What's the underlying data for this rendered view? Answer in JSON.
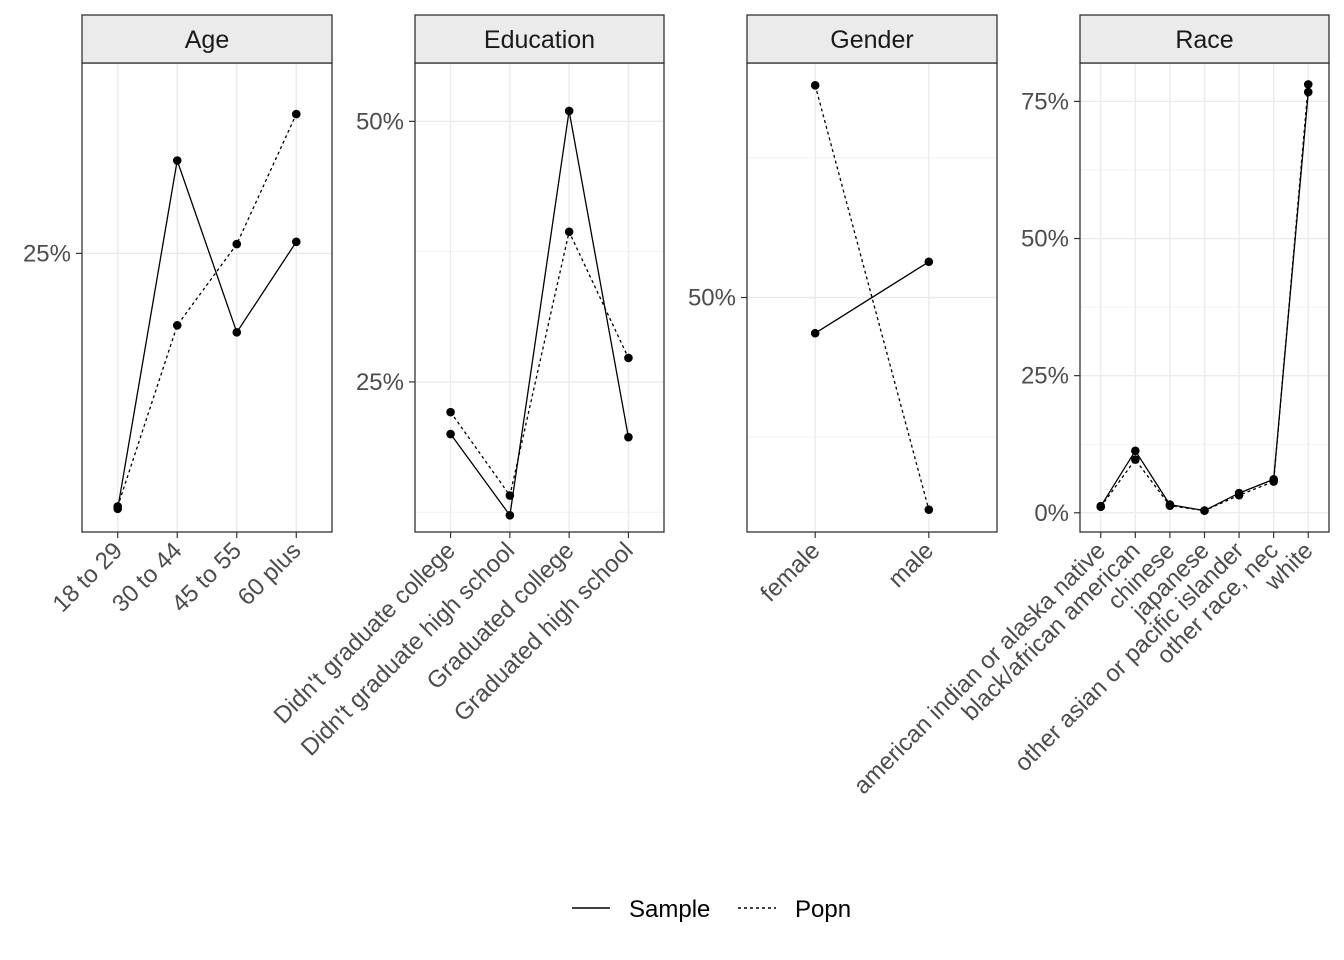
{
  "chart_data": {
    "type": "line",
    "layout": "faceted, free y scales",
    "grid": true,
    "legend_position": "bottom",
    "legend": [
      {
        "name": "Sample",
        "linetype": "solid"
      },
      {
        "name": "Popn",
        "linetype": "dashed"
      }
    ],
    "facets": [
      {
        "title": "Age",
        "categories": [
          "18 to 29",
          "30 to 44",
          "45 to 55",
          "60 plus"
        ],
        "ylim": [
          0.13,
          0.332
        ],
        "yticks": [
          0.25
        ],
        "ytick_labels": [
          "25%"
        ],
        "series": [
          {
            "name": "Sample",
            "values": [
              0.14,
              0.29,
              0.216,
              0.255
            ]
          },
          {
            "name": "Popn",
            "values": [
              0.141,
              0.219,
              0.254,
              0.31
            ]
          }
        ]
      },
      {
        "title": "Education",
        "categories": [
          "Didn't graduate college",
          "Didn't graduate high school",
          "Graduated college",
          "Graduated high school"
        ],
        "ylim": [
          0.106,
          0.556
        ],
        "yticks": [
          0.25,
          0.5
        ],
        "ytick_labels": [
          "25%",
          "50%"
        ],
        "series": [
          {
            "name": "Sample",
            "values": [
              0.2,
              0.122,
              0.51,
              0.197
            ]
          },
          {
            "name": "Popn",
            "values": [
              0.221,
              0.141,
              0.394,
              0.273
            ]
          }
        ]
      },
      {
        "title": "Gender",
        "categories": [
          "female",
          "male"
        ],
        "ylim": [
          0.29,
          0.71
        ],
        "yticks": [
          0.5
        ],
        "ytick_labels": [
          "50%"
        ],
        "series": [
          {
            "name": "Sample",
            "values": [
              0.468,
              0.532
            ]
          },
          {
            "name": "Popn",
            "values": [
              0.69,
              0.31
            ]
          }
        ]
      },
      {
        "title": "Race",
        "categories": [
          "american indian or alaska native",
          "black/african american",
          "chinese",
          "japanese",
          "other asian or pacific islander",
          "other race, nec",
          "white"
        ],
        "ylim": [
          -0.035,
          0.82
        ],
        "yticks": [
          0,
          0.25,
          0.5,
          0.75
        ],
        "ytick_labels": [
          "0%",
          "25%",
          "50%",
          "75%"
        ],
        "series": [
          {
            "name": "Sample",
            "values": [
              0.012,
              0.113,
              0.015,
              0.004,
              0.036,
              0.061,
              0.767
            ]
          },
          {
            "name": "Popn",
            "values": [
              0.011,
              0.097,
              0.013,
              0.004,
              0.032,
              0.057,
              0.781
            ]
          }
        ]
      }
    ]
  }
}
